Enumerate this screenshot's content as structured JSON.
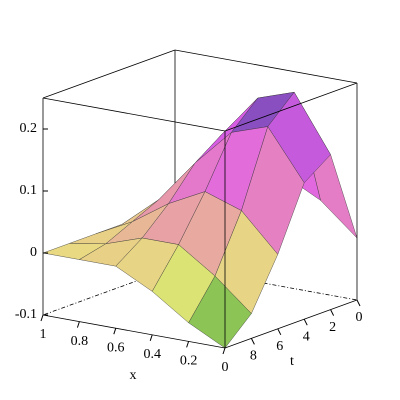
{
  "chart_data": {
    "type": "surface",
    "x_label": "x",
    "y_label": "t",
    "x": [
      0,
      0.2,
      0.4,
      0.6,
      0.8,
      1
    ],
    "y": [
      0,
      2,
      4,
      6,
      8,
      10
    ],
    "z": [
      [
        0,
        0.05,
        0.08,
        0.07,
        0.04,
        0
      ],
      [
        0.15,
        0.24,
        0.22,
        0.15,
        0.07,
        0
      ],
      [
        0.12,
        0.2,
        0.18,
        0.12,
        0.05,
        0
      ],
      [
        0.02,
        0.08,
        0.1,
        0.07,
        0.03,
        0
      ],
      [
        -0.06,
        -0.01,
        0.03,
        0.03,
        0.01,
        0
      ],
      [
        -0.1,
        -0.07,
        -0.03,
        0,
        0,
        0
      ]
    ],
    "xlim": [
      0,
      1
    ],
    "ylim": [
      0,
      10
    ],
    "zlim": [
      -0.1,
      0.25
    ],
    "xticks": [
      0,
      0.2,
      0.4,
      0.6,
      0.8,
      1
    ],
    "yticks": [
      0,
      2,
      4,
      6,
      8
    ],
    "zticks": [
      -0.1,
      0,
      0.1,
      0.2
    ],
    "colormap": [
      "#3fa83a",
      "#e8e878",
      "#e890b0",
      "#e060e8",
      "#4040a0"
    ]
  }
}
